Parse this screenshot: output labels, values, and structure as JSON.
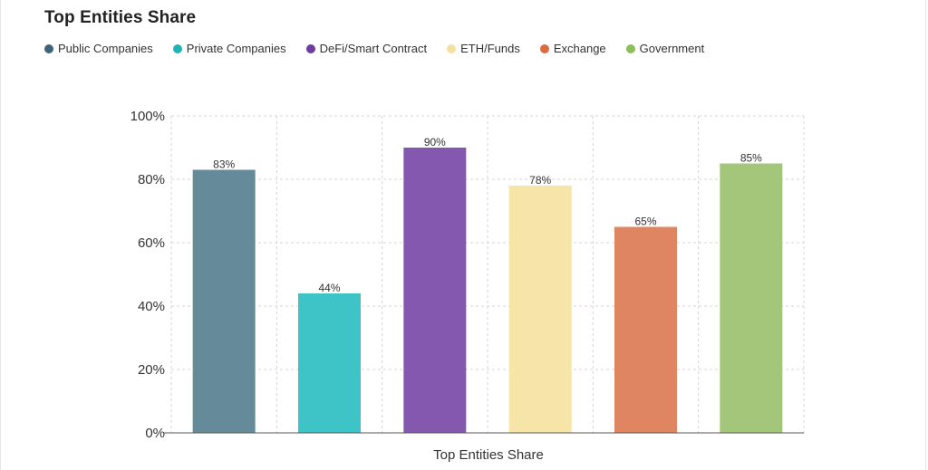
{
  "chart_data": {
    "type": "bar",
    "title": "Top Entities Share",
    "xlabel": "Top Entities Share",
    "ylabel": "",
    "ylim": [
      0,
      100
    ],
    "yticks": [
      "0%",
      "20%",
      "40%",
      "60%",
      "80%",
      "100%"
    ],
    "yticks_values": [
      0,
      20,
      40,
      60,
      80,
      100
    ],
    "grid": true,
    "legend_position": "top-left",
    "categories": [
      "Public Companies",
      "Private Companies",
      "DeFi/Smart Contract",
      "ETH/Funds",
      "Exchange",
      "Government"
    ],
    "values": [
      83,
      44,
      90,
      78,
      65,
      85
    ],
    "value_labels": [
      "83%",
      "44%",
      "90%",
      "78%",
      "65%",
      "85%"
    ],
    "legend_colors": [
      "#3d6478",
      "#21b3b3",
      "#6a3ea1",
      "#f5e0a0",
      "#dd6a3f",
      "#8cbf5a"
    ],
    "bar_colors": [
      "#658a99",
      "#3ec3c6",
      "#8358ae",
      "#f7e4a9",
      "#e08562",
      "#a3c67a"
    ]
  }
}
